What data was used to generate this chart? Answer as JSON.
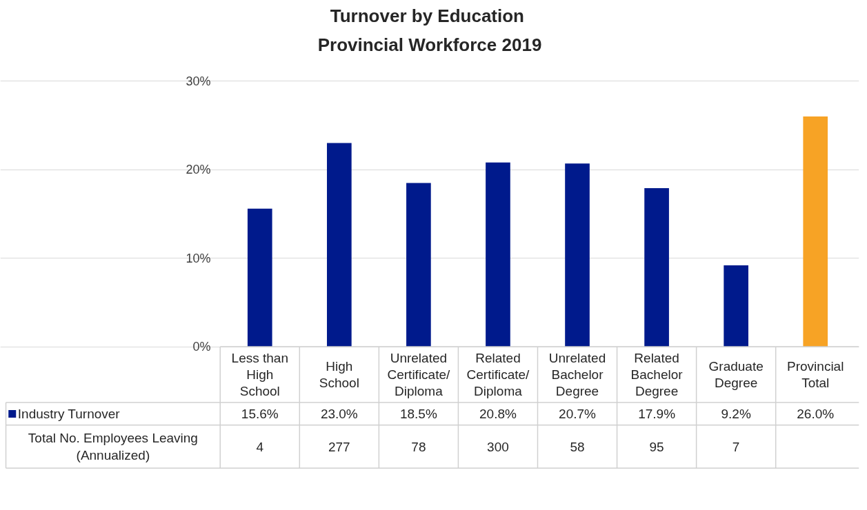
{
  "chart_data": {
    "type": "bar",
    "title": "Turnover by  Education",
    "subtitle": "Provincial Workforce 2019",
    "categories": [
      "Less than\nHigh\nSchool",
      "High\nSchool",
      "Unrelated\nCertificate/\nDiploma",
      "Related\nCertificate/\nDiploma",
      "Unrelated\nBachelor\nDegree",
      "Related\nBachelor\nDegree",
      "Graduate\nDegree",
      "Provincial\nTotal"
    ],
    "series": [
      {
        "name": "Industry Turnover",
        "color": "#001a8c",
        "colors": [
          "#001a8c",
          "#001a8c",
          "#001a8c",
          "#001a8c",
          "#001a8c",
          "#001a8c",
          "#001a8c",
          "#f7a325"
        ],
        "values": [
          15.6,
          23.0,
          18.5,
          20.8,
          20.7,
          17.9,
          9.2,
          26.0
        ],
        "value_labels": [
          "15.6%",
          "23.0%",
          "18.5%",
          "20.8%",
          "20.7%",
          "17.9%",
          "9.2%",
          "26.0%"
        ]
      }
    ],
    "ylim": [
      0,
      30
    ],
    "yticks": [
      {
        "value": 0,
        "label": "0%"
      },
      {
        "value": 10,
        "label": "10%"
      },
      {
        "value": 20,
        "label": "20%"
      },
      {
        "value": 30,
        "label": "30%"
      }
    ],
    "grid": "y",
    "legend": "bottom left",
    "annotations": [
      "Total No. Employees Leaving\n(Annualized)",
      "4",
      "277",
      "78",
      "300",
      "58",
      "95",
      "7"
    ]
  }
}
